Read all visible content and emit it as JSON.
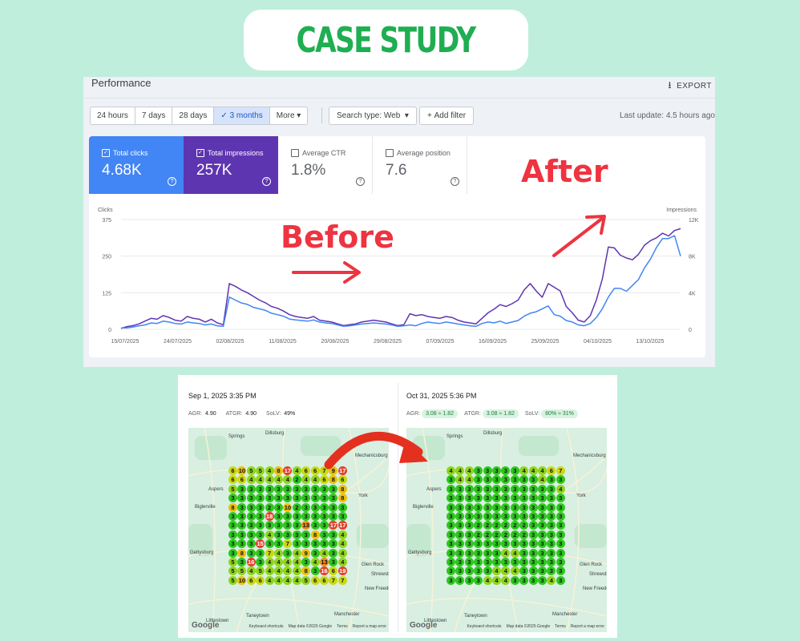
{
  "title": "CASE STUDY",
  "performance": {
    "heading": "Performance",
    "export_label": "EXPORT",
    "date_options": [
      "24 hours",
      "7 days",
      "28 days",
      "3 months",
      "More"
    ],
    "active_date": "3 months",
    "search_type": "Search type: Web",
    "add_filter": "Add filter",
    "last_update": "Last update: 4.5 hours ago",
    "metrics": [
      {
        "label": "Total clicks",
        "value": "4.68K",
        "checked": true
      },
      {
        "label": "Total impressions",
        "value": "257K",
        "checked": true
      },
      {
        "label": "Average CTR",
        "value": "1.8%",
        "checked": false
      },
      {
        "label": "Average position",
        "value": "7.6",
        "checked": false
      }
    ],
    "colors": {
      "clicks": "#4285f4",
      "impressions": "#5e35b1"
    }
  },
  "annotations": {
    "before": "Before",
    "after": "After",
    "arrow_color": "#ef3340"
  },
  "chart_data": {
    "type": "line",
    "left_axis_label": "Clicks",
    "right_axis_label": "Impressions",
    "left_ticks": [
      "375",
      "250",
      "125",
      "0"
    ],
    "right_ticks": [
      "12K",
      "8K",
      "4K",
      "0"
    ],
    "left_range": [
      0,
      375
    ],
    "right_range": [
      0,
      12000
    ],
    "x_labels": [
      "15/07/2025",
      "24/07/2025",
      "02/08/2025",
      "11/08/2025",
      "20/08/2025",
      "29/08/2025",
      "07/09/2025",
      "16/09/2025",
      "25/09/2025",
      "04/10/2025",
      "13/10/2025"
    ],
    "series": [
      {
        "name": "Total clicks",
        "axis": "left",
        "values": [
          5,
          5,
          8,
          12,
          15,
          22,
          20,
          28,
          25,
          20,
          18,
          25,
          22,
          20,
          15,
          18,
          12,
          10,
          110,
          100,
          90,
          85,
          75,
          70,
          65,
          55,
          50,
          45,
          35,
          32,
          30,
          28,
          32,
          25,
          22,
          20,
          15,
          10,
          12,
          15,
          18,
          20,
          22,
          20,
          18,
          15,
          10,
          12,
          15,
          12,
          20,
          25,
          22,
          20,
          25,
          22,
          18,
          15,
          12,
          10,
          20,
          25,
          22,
          28,
          20,
          25,
          30,
          45,
          55,
          60,
          70,
          80,
          50,
          45,
          30,
          25,
          15,
          12,
          20,
          40,
          70,
          110,
          140,
          140,
          130,
          150,
          170,
          210,
          240,
          280,
          310,
          310,
          320,
          250
        ]
      },
      {
        "name": "Total impressions",
        "axis": "right",
        "values": [
          100,
          300,
          400,
          600,
          900,
          1200,
          1100,
          1500,
          1300,
          1000,
          900,
          1400,
          1200,
          1100,
          800,
          1100,
          700,
          500,
          5000,
          4700,
          4300,
          4000,
          3600,
          3200,
          2900,
          2500,
          2300,
          2000,
          1600,
          1400,
          1300,
          1200,
          1400,
          1000,
          900,
          800,
          600,
          400,
          500,
          600,
          800,
          900,
          1000,
          900,
          800,
          600,
          400,
          500,
          1700,
          1500,
          1600,
          1400,
          1300,
          1200,
          1400,
          1300,
          1000,
          800,
          700,
          600,
          1200,
          1800,
          2200,
          2700,
          2500,
          2800,
          3200,
          4300,
          5000,
          4200,
          3500,
          5000,
          4600,
          4200,
          2500,
          1800,
          1000,
          800,
          1500,
          3200,
          5500,
          9000,
          8900,
          8100,
          7800,
          7600,
          8200,
          9200,
          9700,
          10000,
          10500,
          10200,
          10800,
          11000
        ]
      }
    ]
  },
  "maps": [
    {
      "date": "Sep 1, 2025 3:35 PM",
      "stats": [
        {
          "label": "AGR:",
          "value": "4.90",
          "pill": false
        },
        {
          "label": "ATGR:",
          "value": "4.90",
          "pill": false
        },
        {
          "label": "SoLV:",
          "value": "49%",
          "pill": false
        }
      ],
      "grid": [
        [
          6,
          10,
          5,
          5,
          4,
          8,
          17,
          4,
          6,
          6,
          7,
          9,
          17
        ],
        [
          6,
          6,
          4,
          4,
          4,
          4,
          4,
          2,
          4,
          4,
          6,
          8,
          6
        ],
        [
          5,
          3,
          3,
          3,
          3,
          3,
          3,
          3,
          3,
          3,
          3,
          3,
          8
        ],
        [
          3,
          3,
          3,
          3,
          3,
          3,
          3,
          3,
          3,
          3,
          3,
          3,
          8
        ],
        [
          8,
          3,
          3,
          3,
          2,
          3,
          10,
          2,
          3,
          3,
          3,
          3,
          3
        ],
        [
          3,
          3,
          3,
          3,
          18,
          3,
          3,
          3,
          3,
          3,
          3,
          3,
          3
        ],
        [
          3,
          3,
          3,
          3,
          3,
          3,
          3,
          3,
          13,
          3,
          3,
          17,
          17
        ],
        [
          3,
          3,
          3,
          3,
          4,
          3,
          3,
          3,
          3,
          8,
          3,
          3,
          4
        ],
        [
          3,
          3,
          3,
          15,
          3,
          3,
          7,
          3,
          3,
          3,
          3,
          3,
          4
        ],
        [
          3,
          8,
          3,
          3,
          7,
          4,
          3,
          4,
          9,
          3,
          4,
          3,
          4
        ],
        [
          5,
          3,
          16,
          3,
          4,
          4,
          4,
          4,
          3,
          4,
          13,
          3,
          4
        ],
        [
          5,
          5,
          4,
          5,
          4,
          4,
          4,
          4,
          8,
          3,
          16,
          6,
          19
        ],
        [
          5,
          10,
          6,
          6,
          4,
          4,
          4,
          4,
          5,
          6,
          6,
          7,
          7
        ]
      ],
      "towns": [
        "Springs",
        "Dillsburg",
        "Mechanicsburg",
        "Aspers",
        "York",
        "Biglerville",
        "Gettysburg",
        "Glen Rock",
        "Shrewsbury",
        "New Freedom",
        "Littlestown",
        "Taneytown",
        "Manchester"
      ]
    },
    {
      "date": "Oct 31, 2025 5:36 PM",
      "stats": [
        {
          "label": "AGR:",
          "value": "3.08 ≈ 1.82",
          "pill": true
        },
        {
          "label": "ATGR:",
          "value": "3.08 ≈ 1.82",
          "pill": true
        },
        {
          "label": "SoLV:",
          "value": "80% ≈ 31%",
          "pill": true
        }
      ],
      "grid": [
        [
          4,
          4,
          4,
          3,
          3,
          3,
          3,
          3,
          4,
          4,
          4,
          6,
          7
        ],
        [
          3,
          4,
          4,
          3,
          3,
          3,
          3,
          3,
          3,
          3,
          4,
          3,
          3
        ],
        [
          3,
          3,
          3,
          3,
          3,
          3,
          3,
          3,
          3,
          3,
          3,
          3,
          4
        ],
        [
          3,
          3,
          3,
          3,
          3,
          3,
          3,
          3,
          3,
          3,
          3,
          3,
          3
        ],
        [
          3,
          3,
          3,
          3,
          3,
          3,
          3,
          3,
          3,
          3,
          3,
          3,
          3
        ],
        [
          3,
          3,
          3,
          3,
          3,
          3,
          3,
          3,
          3,
          3,
          3,
          3,
          3
        ],
        [
          3,
          3,
          3,
          2,
          2,
          2,
          2,
          2,
          2,
          3,
          3,
          3,
          3
        ],
        [
          3,
          3,
          3,
          2,
          2,
          2,
          2,
          2,
          2,
          3,
          3,
          3,
          3
        ],
        [
          3,
          3,
          3,
          3,
          3,
          3,
          3,
          3,
          3,
          3,
          3,
          3,
          3
        ],
        [
          3,
          3,
          3,
          3,
          3,
          3,
          4,
          4,
          3,
          3,
          3,
          3,
          3
        ],
        [
          3,
          3,
          3,
          3,
          3,
          3,
          3,
          3,
          3,
          3,
          3,
          3,
          3
        ],
        [
          3,
          3,
          3,
          3,
          3,
          4,
          4,
          4,
          3,
          3,
          3,
          3,
          3
        ],
        [
          3,
          3,
          3,
          3,
          4,
          4,
          4,
          3,
          3,
          3,
          3,
          4,
          3
        ]
      ],
      "towns": [
        "Springs",
        "Dillsburg",
        "Mechanicsburg",
        "Aspers",
        "York",
        "Biglerville",
        "Gettysburg",
        "Glen Rock",
        "Shrewsbury",
        "New Freedom",
        "Littlestown",
        "Taneytown",
        "Manchester"
      ]
    }
  ],
  "map_footer": [
    "Keyboard shortcuts",
    "Map data ©2025 Google",
    "Terms",
    "Report a map error"
  ],
  "google_logo": "Google"
}
